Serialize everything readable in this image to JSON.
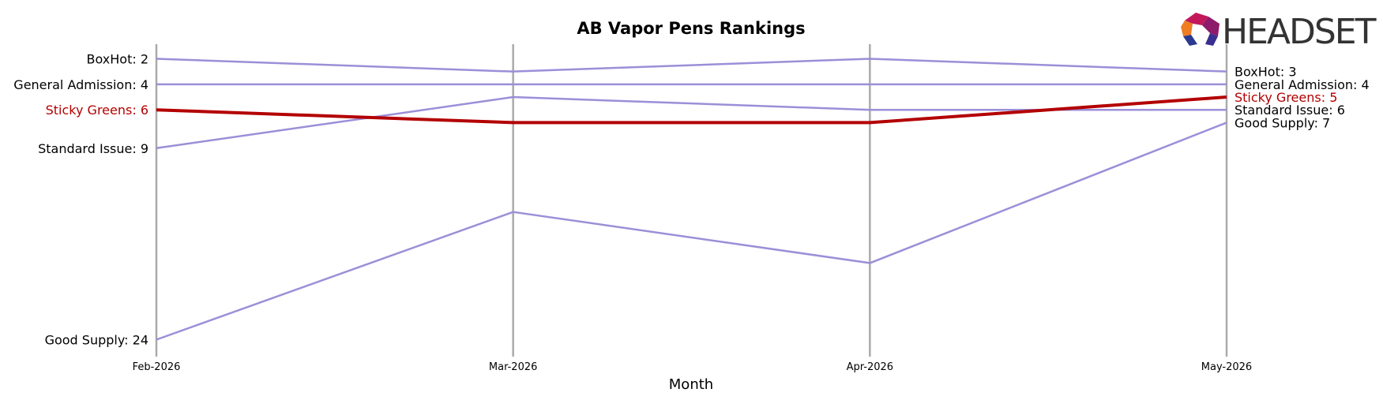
{
  "logo": {
    "text": "HEADSET"
  },
  "colors": {
    "highlight": "#b30000",
    "other": "#9b8fd8",
    "axis": "#aaaaaa",
    "text": "#000000"
  },
  "chart_data": {
    "type": "line",
    "title": "AB Vapor Pens Rankings",
    "xlabel": "Month",
    "ylabel": "",
    "categories": [
      "Feb-2026",
      "Mar-2026",
      "Apr-2026",
      "May-2026"
    ],
    "y_inverted": true,
    "ylim": [
      1,
      24
    ],
    "series": [
      {
        "name": "BoxHot",
        "values": [
          2,
          3,
          2,
          3
        ],
        "highlight": false,
        "start_label": "BoxHot: 2",
        "end_label": "BoxHot: 3"
      },
      {
        "name": "General Admission",
        "values": [
          4,
          4,
          4,
          4
        ],
        "highlight": false,
        "start_label": "General Admission: 4",
        "end_label": "General Admission: 4"
      },
      {
        "name": "Standard Issue",
        "values": [
          9,
          5,
          6,
          6
        ],
        "highlight": false,
        "start_label": "Standard Issue: 9",
        "end_label": "Standard Issue: 6"
      },
      {
        "name": "Good Supply",
        "values": [
          24,
          14,
          18,
          7
        ],
        "highlight": false,
        "start_label": "Good Supply: 24",
        "end_label": "Good Supply: 7"
      },
      {
        "name": "Sticky Greens",
        "values": [
          6,
          7,
          7,
          5
        ],
        "highlight": true,
        "start_label": "Sticky Greens: 6",
        "end_label": "Sticky Greens: 5"
      }
    ]
  }
}
